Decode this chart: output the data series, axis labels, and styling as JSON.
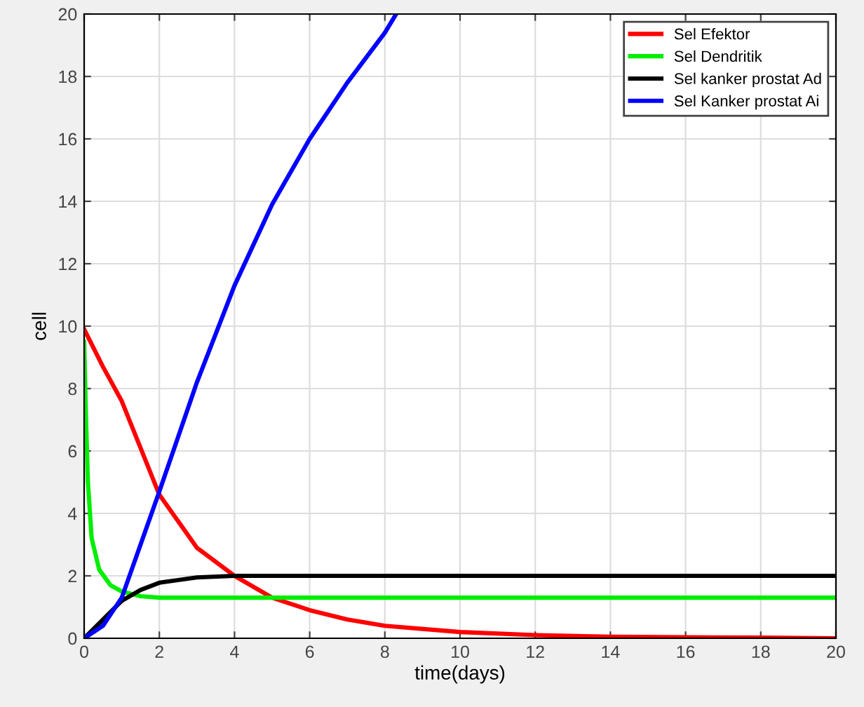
{
  "chart_data": {
    "type": "line",
    "xlabel": "time(days)",
    "ylabel": "cell",
    "xlim": [
      0,
      20
    ],
    "ylim": [
      0,
      20
    ],
    "xticks": [
      0,
      2,
      4,
      6,
      8,
      10,
      12,
      14,
      16,
      18,
      20
    ],
    "yticks": [
      0,
      2,
      4,
      6,
      8,
      10,
      12,
      14,
      16,
      18,
      20
    ],
    "grid": true,
    "legend": "top right",
    "line_style": "solid",
    "series": [
      {
        "name": "Sel Efektor",
        "color": "#ff0000",
        "x": [
          0,
          0.5,
          1,
          1.5,
          2,
          3,
          4,
          5,
          6,
          7,
          8,
          10,
          12,
          14,
          16,
          18,
          20
        ],
        "values": [
          9.9,
          8.7,
          7.6,
          6.1,
          4.6,
          2.9,
          2.0,
          1.3,
          0.9,
          0.6,
          0.4,
          0.2,
          0.1,
          0.05,
          0.03,
          0.02,
          0
        ]
      },
      {
        "name": "Sel Dendritik",
        "color": "#00ee00",
        "x": [
          0,
          0.05,
          0.1,
          0.2,
          0.4,
          0.7,
          1,
          1.5,
          2,
          4,
          20
        ],
        "values": [
          9.5,
          7,
          5,
          3.2,
          2.2,
          1.7,
          1.5,
          1.35,
          1.3,
          1.3,
          1.3
        ]
      },
      {
        "name": "Sel kanker prostat Ad",
        "color": "#000000",
        "x": [
          0,
          0.5,
          1,
          1.5,
          2,
          3,
          4,
          20
        ],
        "values": [
          0,
          0.6,
          1.2,
          1.55,
          1.78,
          1.95,
          2,
          2
        ]
      },
      {
        "name": "Sel Kanker prostat Ai",
        "color": "#0000ff",
        "x": [
          0,
          0.5,
          1,
          2,
          3,
          4,
          5,
          6,
          7,
          8,
          8.3
        ],
        "values": [
          0,
          0.4,
          1.3,
          4.7,
          8.2,
          11.3,
          13.9,
          16.0,
          17.8,
          19.4,
          20
        ]
      }
    ]
  }
}
